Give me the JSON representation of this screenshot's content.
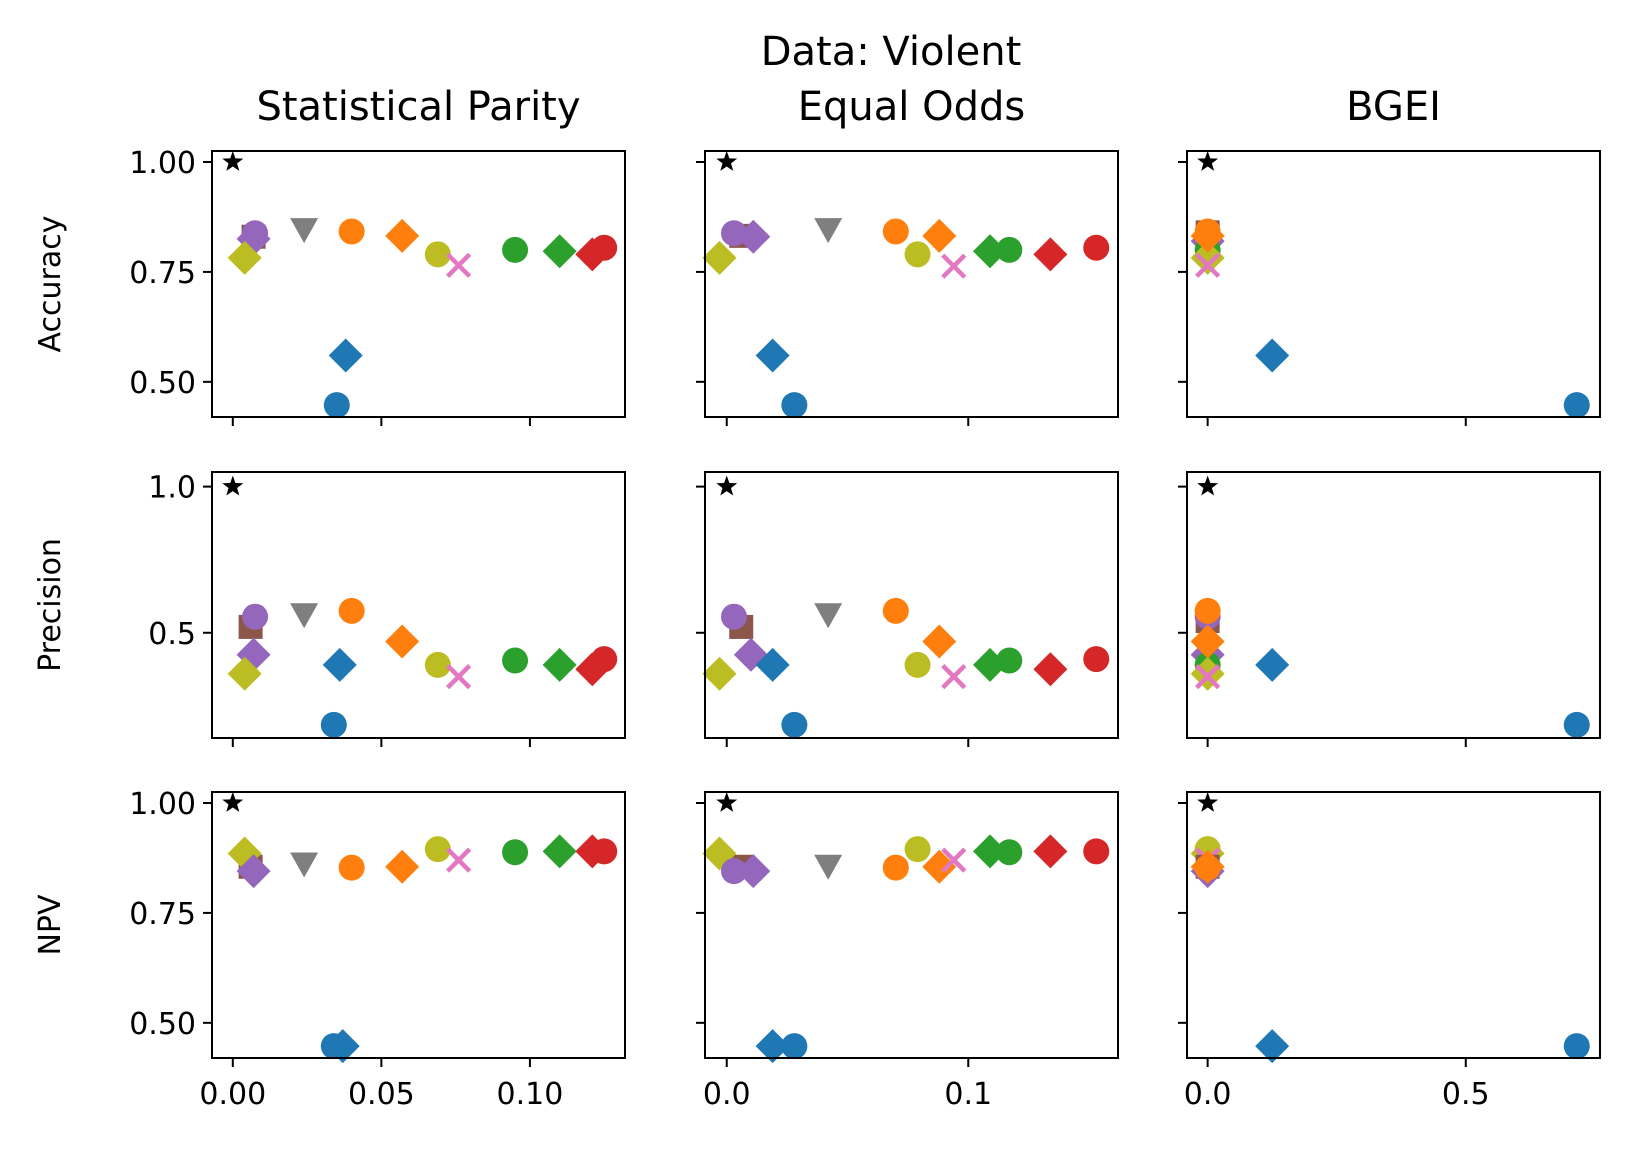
{
  "figure": {
    "suptitle": "Data: Violent"
  },
  "chart_data": {
    "type": "scatter",
    "grid": false,
    "legend": "none",
    "columns": [
      {
        "title": "Statistical Parity",
        "xlim": [
          -0.007,
          0.132
        ],
        "xticks": [
          0,
          0.05,
          0.1
        ],
        "xtick_labels": [
          "0.00",
          "0.05",
          "0.10"
        ]
      },
      {
        "title": "Equal Odds",
        "xlim": [
          -0.009,
          0.162
        ],
        "xticks": [
          0,
          0.1
        ],
        "xtick_labels": [
          "0.0",
          "0.1"
        ]
      },
      {
        "title": "BGEI",
        "xlim": [
          -0.04,
          0.76
        ],
        "xticks": [
          0,
          0.5
        ],
        "xtick_labels": [
          "0.0",
          "0.5"
        ]
      }
    ],
    "rows": [
      {
        "ylabel": "Accuracy",
        "ylim": [
          0.42,
          1.025
        ],
        "yticks": [
          0.5,
          0.75,
          1.0
        ],
        "ytick_labels": [
          "0.50",
          "0.75",
          "1.00"
        ]
      },
      {
        "ylabel": "Precision",
        "ylim": [
          0.14,
          1.05
        ],
        "yticks": [
          0.5,
          1.0
        ],
        "ytick_labels": [
          "0.5",
          "1.0"
        ]
      },
      {
        "ylabel": "NPV",
        "ylim": [
          0.42,
          1.025
        ],
        "yticks": [
          0.5,
          0.75,
          1.0
        ],
        "ytick_labels": [
          "0.50",
          "0.75",
          "1.00"
        ]
      }
    ],
    "colors": {
      "blue": "#1f77b4",
      "orange": "#ff7f0e",
      "green": "#2ca02c",
      "red": "#d62728",
      "purple": "#9467bd",
      "brown": "#8c564b",
      "pink": "#e377c2",
      "gray": "#7f7f7f",
      "olive": "#bcbd22",
      "black": "#000000"
    },
    "panels": [
      [
        [
          {
            "x": 0,
            "y": 1.0,
            "m": "star",
            "c": "black"
          },
          {
            "x": 0.007,
            "y": 0.83,
            "m": "square",
            "c": "brown"
          },
          {
            "x": 0.0075,
            "y": 0.838,
            "m": "circle",
            "c": "purple"
          },
          {
            "x": 0.007,
            "y": 0.825,
            "m": "diamond",
            "c": "purple"
          },
          {
            "x": 0.004,
            "y": 0.782,
            "m": "diamond",
            "c": "olive"
          },
          {
            "x": 0.024,
            "y": 0.845,
            "m": "triangle_down",
            "c": "gray"
          },
          {
            "x": 0.04,
            "y": 0.842,
            "m": "circle",
            "c": "orange"
          },
          {
            "x": 0.057,
            "y": 0.832,
            "m": "diamond",
            "c": "orange"
          },
          {
            "x": 0.069,
            "y": 0.79,
            "m": "circle",
            "c": "olive"
          },
          {
            "x": 0.076,
            "y": 0.765,
            "m": "x",
            "c": "pink"
          },
          {
            "x": 0.095,
            "y": 0.8,
            "m": "circle",
            "c": "green"
          },
          {
            "x": 0.11,
            "y": 0.797,
            "m": "diamond",
            "c": "green"
          },
          {
            "x": 0.121,
            "y": 0.79,
            "m": "diamond",
            "c": "red"
          },
          {
            "x": 0.125,
            "y": 0.805,
            "m": "circle",
            "c": "red"
          },
          {
            "x": 0.038,
            "y": 0.56,
            "m": "diamond",
            "c": "blue"
          },
          {
            "x": 0.035,
            "y": 0.447,
            "m": "circle",
            "c": "blue"
          }
        ],
        [
          {
            "x": 0,
            "y": 1.0,
            "m": "star",
            "c": "black"
          },
          {
            "x": 0.006,
            "y": 0.832,
            "m": "square",
            "c": "brown"
          },
          {
            "x": 0.003,
            "y": 0.838,
            "m": "circle",
            "c": "purple"
          },
          {
            "x": 0.011,
            "y": 0.83,
            "m": "diamond",
            "c": "purple"
          },
          {
            "x": -0.003,
            "y": 0.782,
            "m": "diamond",
            "c": "olive"
          },
          {
            "x": 0.042,
            "y": 0.845,
            "m": "triangle_down",
            "c": "gray"
          },
          {
            "x": 0.07,
            "y": 0.842,
            "m": "circle",
            "c": "orange"
          },
          {
            "x": 0.088,
            "y": 0.832,
            "m": "diamond",
            "c": "orange"
          },
          {
            "x": 0.079,
            "y": 0.79,
            "m": "circle",
            "c": "olive"
          },
          {
            "x": 0.094,
            "y": 0.763,
            "m": "x",
            "c": "pink"
          },
          {
            "x": 0.117,
            "y": 0.8,
            "m": "circle",
            "c": "green"
          },
          {
            "x": 0.109,
            "y": 0.797,
            "m": "diamond",
            "c": "green"
          },
          {
            "x": 0.134,
            "y": 0.79,
            "m": "diamond",
            "c": "red"
          },
          {
            "x": 0.153,
            "y": 0.805,
            "m": "circle",
            "c": "red"
          },
          {
            "x": 0.019,
            "y": 0.56,
            "m": "diamond",
            "c": "blue"
          },
          {
            "x": 0.028,
            "y": 0.447,
            "m": "circle",
            "c": "blue"
          }
        ],
        [
          {
            "x": 0,
            "y": 1.0,
            "m": "star",
            "c": "black"
          },
          {
            "x": 0,
            "y": 0.84,
            "m": "square",
            "c": "brown"
          },
          {
            "x": 0,
            "y": 0.83,
            "m": "circle",
            "c": "purple"
          },
          {
            "x": 0,
            "y": 0.82,
            "m": "diamond",
            "c": "purple"
          },
          {
            "x": 0,
            "y": 0.8,
            "m": "circle",
            "c": "green"
          },
          {
            "x": 0,
            "y": 0.782,
            "m": "diamond",
            "c": "olive"
          },
          {
            "x": 0,
            "y": 0.765,
            "m": "x",
            "c": "pink"
          },
          {
            "x": 0,
            "y": 0.842,
            "m": "circle",
            "c": "orange"
          },
          {
            "x": 0,
            "y": 0.832,
            "m": "diamond",
            "c": "orange"
          },
          {
            "x": 0.125,
            "y": 0.56,
            "m": "diamond",
            "c": "blue"
          },
          {
            "x": 0.715,
            "y": 0.447,
            "m": "circle",
            "c": "blue"
          }
        ]
      ],
      [
        [
          {
            "x": 0,
            "y": 1.0,
            "m": "star",
            "c": "black"
          },
          {
            "x": 0.006,
            "y": 0.52,
            "m": "square",
            "c": "brown"
          },
          {
            "x": 0.0075,
            "y": 0.555,
            "m": "circle",
            "c": "purple"
          },
          {
            "x": 0.007,
            "y": 0.425,
            "m": "diamond",
            "c": "purple"
          },
          {
            "x": 0.004,
            "y": 0.36,
            "m": "diamond",
            "c": "olive"
          },
          {
            "x": 0.024,
            "y": 0.56,
            "m": "triangle_down",
            "c": "gray"
          },
          {
            "x": 0.04,
            "y": 0.575,
            "m": "circle",
            "c": "orange"
          },
          {
            "x": 0.057,
            "y": 0.47,
            "m": "diamond",
            "c": "orange"
          },
          {
            "x": 0.069,
            "y": 0.39,
            "m": "circle",
            "c": "olive"
          },
          {
            "x": 0.076,
            "y": 0.35,
            "m": "x",
            "c": "pink"
          },
          {
            "x": 0.095,
            "y": 0.405,
            "m": "circle",
            "c": "green"
          },
          {
            "x": 0.11,
            "y": 0.39,
            "m": "diamond",
            "c": "green"
          },
          {
            "x": 0.121,
            "y": 0.375,
            "m": "diamond",
            "c": "red"
          },
          {
            "x": 0.125,
            "y": 0.41,
            "m": "circle",
            "c": "red"
          },
          {
            "x": 0.036,
            "y": 0.39,
            "m": "diamond",
            "c": "blue"
          },
          {
            "x": 0.034,
            "y": 0.185,
            "m": "circle",
            "c": "blue"
          }
        ],
        [
          {
            "x": 0,
            "y": 1.0,
            "m": "star",
            "c": "black"
          },
          {
            "x": 0.006,
            "y": 0.52,
            "m": "square",
            "c": "brown"
          },
          {
            "x": 0.003,
            "y": 0.555,
            "m": "circle",
            "c": "purple"
          },
          {
            "x": 0.01,
            "y": 0.425,
            "m": "diamond",
            "c": "purple"
          },
          {
            "x": -0.003,
            "y": 0.36,
            "m": "diamond",
            "c": "olive"
          },
          {
            "x": 0.042,
            "y": 0.56,
            "m": "triangle_down",
            "c": "gray"
          },
          {
            "x": 0.07,
            "y": 0.575,
            "m": "circle",
            "c": "orange"
          },
          {
            "x": 0.088,
            "y": 0.47,
            "m": "diamond",
            "c": "orange"
          },
          {
            "x": 0.079,
            "y": 0.39,
            "m": "circle",
            "c": "olive"
          },
          {
            "x": 0.094,
            "y": 0.35,
            "m": "x",
            "c": "pink"
          },
          {
            "x": 0.117,
            "y": 0.405,
            "m": "circle",
            "c": "green"
          },
          {
            "x": 0.109,
            "y": 0.39,
            "m": "diamond",
            "c": "green"
          },
          {
            "x": 0.134,
            "y": 0.375,
            "m": "diamond",
            "c": "red"
          },
          {
            "x": 0.153,
            "y": 0.41,
            "m": "circle",
            "c": "red"
          },
          {
            "x": 0.019,
            "y": 0.39,
            "m": "diamond",
            "c": "blue"
          },
          {
            "x": 0.028,
            "y": 0.185,
            "m": "circle",
            "c": "blue"
          }
        ],
        [
          {
            "x": 0,
            "y": 1.0,
            "m": "star",
            "c": "black"
          },
          {
            "x": 0,
            "y": 0.54,
            "m": "square",
            "c": "brown"
          },
          {
            "x": 0,
            "y": 0.555,
            "m": "circle",
            "c": "purple"
          },
          {
            "x": 0,
            "y": 0.425,
            "m": "diamond",
            "c": "purple"
          },
          {
            "x": 0,
            "y": 0.39,
            "m": "circle",
            "c": "green"
          },
          {
            "x": 0,
            "y": 0.36,
            "m": "diamond",
            "c": "olive"
          },
          {
            "x": 0,
            "y": 0.35,
            "m": "x",
            "c": "pink"
          },
          {
            "x": 0,
            "y": 0.575,
            "m": "circle",
            "c": "orange"
          },
          {
            "x": 0,
            "y": 0.47,
            "m": "diamond",
            "c": "orange"
          },
          {
            "x": 0.125,
            "y": 0.39,
            "m": "diamond",
            "c": "blue"
          },
          {
            "x": 0.715,
            "y": 0.185,
            "m": "circle",
            "c": "blue"
          }
        ]
      ],
      [
        [
          {
            "x": 0,
            "y": 1.0,
            "m": "star",
            "c": "black"
          },
          {
            "x": 0.006,
            "y": 0.855,
            "m": "square",
            "c": "brown"
          },
          {
            "x": 0.004,
            "y": 0.885,
            "m": "diamond",
            "c": "olive"
          },
          {
            "x": 0.007,
            "y": 0.845,
            "m": "diamond",
            "c": "purple"
          },
          {
            "x": 0.024,
            "y": 0.86,
            "m": "triangle_down",
            "c": "gray"
          },
          {
            "x": 0.04,
            "y": 0.853,
            "m": "circle",
            "c": "orange"
          },
          {
            "x": 0.057,
            "y": 0.855,
            "m": "diamond",
            "c": "orange"
          },
          {
            "x": 0.069,
            "y": 0.895,
            "m": "circle",
            "c": "olive"
          },
          {
            "x": 0.076,
            "y": 0.87,
            "m": "x",
            "c": "pink"
          },
          {
            "x": 0.095,
            "y": 0.888,
            "m": "circle",
            "c": "green"
          },
          {
            "x": 0.11,
            "y": 0.89,
            "m": "diamond",
            "c": "green"
          },
          {
            "x": 0.121,
            "y": 0.89,
            "m": "diamond",
            "c": "red"
          },
          {
            "x": 0.125,
            "y": 0.89,
            "m": "circle",
            "c": "red"
          },
          {
            "x": 0.034,
            "y": 0.447,
            "m": "circle",
            "c": "blue"
          },
          {
            "x": 0.037,
            "y": 0.447,
            "m": "diamond",
            "c": "blue"
          }
        ],
        [
          {
            "x": 0,
            "y": 1.0,
            "m": "star",
            "c": "black"
          },
          {
            "x": 0.006,
            "y": 0.855,
            "m": "square",
            "c": "brown"
          },
          {
            "x": -0.003,
            "y": 0.885,
            "m": "diamond",
            "c": "olive"
          },
          {
            "x": 0.003,
            "y": 0.845,
            "m": "circle",
            "c": "purple"
          },
          {
            "x": 0.011,
            "y": 0.845,
            "m": "diamond",
            "c": "purple"
          },
          {
            "x": 0.042,
            "y": 0.855,
            "m": "triangle_down",
            "c": "gray"
          },
          {
            "x": 0.07,
            "y": 0.853,
            "m": "circle",
            "c": "orange"
          },
          {
            "x": 0.088,
            "y": 0.855,
            "m": "diamond",
            "c": "orange"
          },
          {
            "x": 0.079,
            "y": 0.895,
            "m": "circle",
            "c": "olive"
          },
          {
            "x": 0.094,
            "y": 0.87,
            "m": "x",
            "c": "pink"
          },
          {
            "x": 0.117,
            "y": 0.888,
            "m": "circle",
            "c": "green"
          },
          {
            "x": 0.109,
            "y": 0.89,
            "m": "diamond",
            "c": "green"
          },
          {
            "x": 0.134,
            "y": 0.89,
            "m": "diamond",
            "c": "red"
          },
          {
            "x": 0.153,
            "y": 0.89,
            "m": "circle",
            "c": "red"
          },
          {
            "x": 0.019,
            "y": 0.447,
            "m": "diamond",
            "c": "blue"
          },
          {
            "x": 0.028,
            "y": 0.447,
            "m": "circle",
            "c": "blue"
          }
        ],
        [
          {
            "x": 0,
            "y": 1.0,
            "m": "star",
            "c": "black"
          },
          {
            "x": 0,
            "y": 0.895,
            "m": "circle",
            "c": "olive"
          },
          {
            "x": 0,
            "y": 0.885,
            "m": "diamond",
            "c": "olive"
          },
          {
            "x": 0,
            "y": 0.87,
            "m": "x",
            "c": "pink"
          },
          {
            "x": 0,
            "y": 0.855,
            "m": "square",
            "c": "brown"
          },
          {
            "x": 0,
            "y": 0.845,
            "m": "diamond",
            "c": "purple"
          },
          {
            "x": 0,
            "y": 0.853,
            "m": "circle",
            "c": "orange"
          },
          {
            "x": 0,
            "y": 0.855,
            "m": "diamond",
            "c": "orange"
          },
          {
            "x": 0.125,
            "y": 0.447,
            "m": "diamond",
            "c": "blue"
          },
          {
            "x": 0.715,
            "y": 0.447,
            "m": "circle",
            "c": "blue"
          }
        ]
      ]
    ]
  }
}
